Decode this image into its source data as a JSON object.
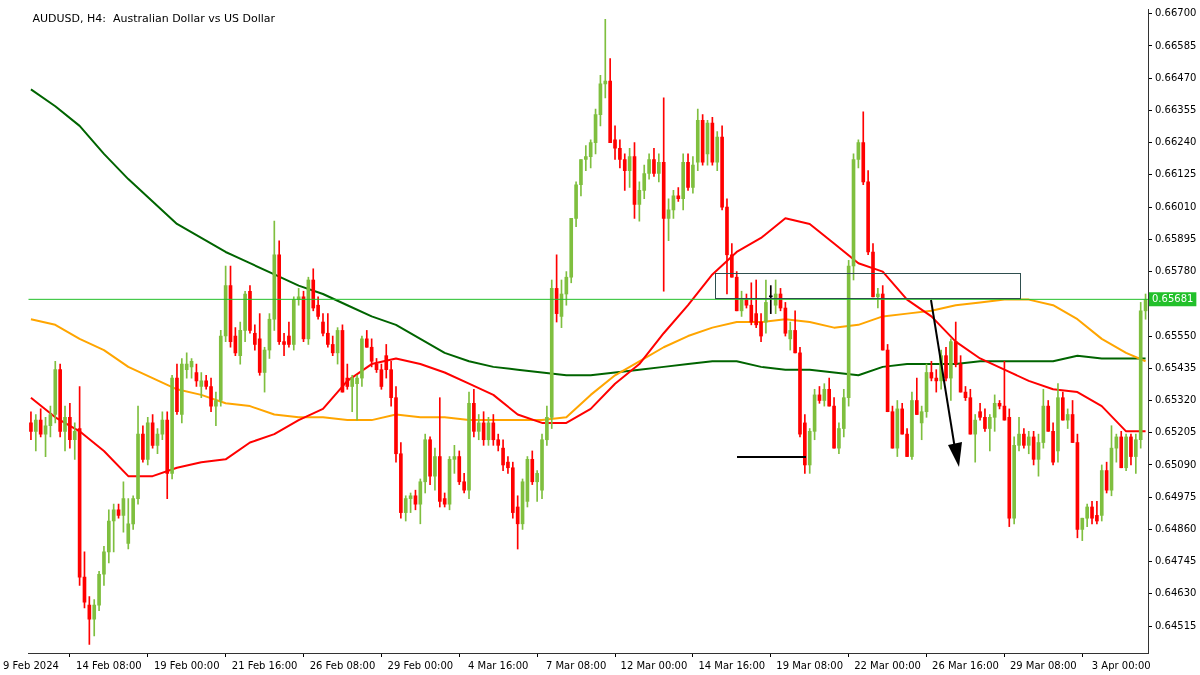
{
  "chart_data": {
    "type": "candlestick",
    "title": "AUDUSD, H4:  Australian Dollar vs US Dollar",
    "categories": [
      "9 Feb 2024",
      null,
      null,
      null,
      null,
      null,
      null,
      null,
      null,
      null,
      null,
      null,
      null,
      null,
      null,
      null,
      "14 Feb 08:00",
      null,
      null,
      null,
      null,
      null,
      null,
      null,
      null,
      null,
      null,
      null,
      null,
      null,
      null,
      null,
      "19 Feb 00:00",
      null,
      null,
      null,
      null,
      null,
      null,
      null,
      null,
      null,
      null,
      null,
      null,
      null,
      null,
      null,
      "21 Feb 16:00",
      null,
      null,
      null,
      null,
      null,
      null,
      null,
      null,
      null,
      null,
      null,
      null,
      null,
      null,
      null,
      "26 Feb 08:00",
      null,
      null,
      null,
      null,
      null,
      null,
      null,
      null,
      null,
      null,
      null,
      null,
      null,
      null,
      null,
      "29 Feb 00:00",
      null,
      null,
      null,
      null,
      null,
      null,
      null,
      null,
      null,
      null,
      null,
      null,
      null,
      null,
      null,
      "4 Mar 16:00",
      null,
      null,
      null,
      null,
      null,
      null,
      null,
      null,
      null,
      null,
      null,
      null,
      null,
      null,
      null,
      "7 Mar 08:00",
      null,
      null,
      null,
      null,
      null,
      null,
      null,
      null,
      null,
      null,
      null,
      null,
      null,
      null,
      null,
      "12 Mar 00:00",
      null,
      null,
      null,
      null,
      null,
      null,
      null,
      null,
      null,
      null,
      null,
      null,
      null,
      null,
      null,
      "14 Mar 16:00",
      null,
      null,
      null,
      null,
      null,
      null,
      null,
      null,
      null,
      null,
      null,
      null,
      null,
      null,
      null,
      "19 Mar 08:00",
      null,
      null,
      null,
      null,
      null,
      null,
      null,
      null,
      null,
      null,
      null,
      null,
      null,
      null,
      null,
      "22 Mar 00:00",
      null,
      null,
      null,
      null,
      null,
      null,
      null,
      null,
      null,
      null,
      null,
      null,
      null,
      null,
      null,
      "26 Mar 16:00",
      null,
      null,
      null,
      null,
      null,
      null,
      null,
      null,
      null,
      null,
      null,
      null,
      null,
      null,
      null,
      "29 Mar 08:00",
      null,
      null,
      null,
      null,
      null,
      null,
      null,
      null,
      null,
      null,
      null,
      null,
      null,
      null,
      null,
      "3 Apr 00:00",
      null,
      null,
      null,
      null,
      null
    ],
    "ohlc": [
      [
        0.6524,
        0.6528,
        0.6518,
        0.6521
      ],
      [
        0.6521,
        0.6527,
        0.6514,
        0.6525
      ],
      [
        0.6525,
        0.6529,
        0.6519,
        0.652
      ],
      [
        0.652,
        0.6526,
        0.6512,
        0.6523
      ],
      [
        0.6523,
        0.653,
        0.6519,
        0.6527
      ],
      [
        0.6527,
        0.6546,
        0.6524,
        0.6543
      ],
      [
        0.6543,
        0.6545,
        0.6519,
        0.6521
      ],
      [
        0.6521,
        0.653,
        0.6514,
        0.6526
      ],
      [
        0.6526,
        0.6531,
        0.6515,
        0.6518
      ],
      [
        0.6518,
        0.6524,
        0.6511,
        0.6521
      ],
      [
        0.6522,
        0.6537,
        0.6466,
        0.6469
      ],
      [
        0.6469,
        0.6478,
        0.6458,
        0.646
      ],
      [
        0.6459,
        0.6462,
        0.6445,
        0.6454
      ],
      [
        0.6454,
        0.6461,
        0.6448,
        0.6459
      ],
      [
        0.6459,
        0.6471,
        0.6457,
        0.647
      ],
      [
        0.647,
        0.648,
        0.6466,
        0.6478
      ],
      [
        0.6478,
        0.6493,
        0.6474,
        0.6489
      ],
      [
        0.6489,
        0.6495,
        0.6478,
        0.6493
      ],
      [
        0.6493,
        0.6495,
        0.649,
        0.6491
      ],
      [
        0.6491,
        0.6503,
        0.6485,
        0.6497
      ],
      [
        0.6481,
        0.6497,
        0.6479,
        0.6488
      ],
      [
        0.6488,
        0.6498,
        0.6486,
        0.6497
      ],
      [
        0.6497,
        0.653,
        0.6495,
        0.652
      ],
      [
        0.652,
        0.6523,
        0.651,
        0.6511
      ],
      [
        0.6511,
        0.6526,
        0.6509,
        0.6524
      ],
      [
        0.6524,
        0.6527,
        0.6515,
        0.6516
      ],
      [
        0.6516,
        0.6522,
        0.6513,
        0.652
      ],
      [
        0.652,
        0.6528,
        0.6518,
        0.6525
      ],
      [
        0.6525,
        0.6528,
        0.6497,
        0.6506
      ],
      [
        0.6506,
        0.6541,
        0.6504,
        0.654
      ],
      [
        0.654,
        0.6545,
        0.6527,
        0.6528
      ],
      [
        0.6527,
        0.6547,
        0.6524,
        0.6545
      ],
      [
        0.6543,
        0.6549,
        0.654,
        0.6545
      ],
      [
        0.6544,
        0.6547,
        0.654,
        0.6546
      ],
      [
        0.6542,
        0.6545,
        0.6537,
        0.6539
      ],
      [
        0.6537,
        0.6542,
        0.6533,
        0.6539
      ],
      [
        0.6539,
        0.6541,
        0.6536,
        0.6537
      ],
      [
        0.6537,
        0.654,
        0.6528,
        0.653
      ],
      [
        0.653,
        0.6535,
        0.6523,
        0.6532
      ],
      [
        0.6532,
        0.6557,
        0.653,
        0.6555
      ],
      [
        0.6555,
        0.658,
        0.6553,
        0.6573
      ],
      [
        0.6573,
        0.658,
        0.6551,
        0.6553
      ],
      [
        0.6555,
        0.6558,
        0.6548,
        0.6549
      ],
      [
        0.6548,
        0.656,
        0.6545,
        0.6557
      ],
      [
        0.6557,
        0.6571,
        0.6553,
        0.657
      ],
      [
        0.6571,
        0.6573,
        0.6556,
        0.6557
      ],
      [
        0.6556,
        0.6559,
        0.655,
        0.6552
      ],
      [
        0.6554,
        0.6563,
        0.6541,
        0.6542
      ],
      [
        0.6542,
        0.6551,
        0.6535,
        0.655
      ],
      [
        0.655,
        0.6563,
        0.6547,
        0.6561
      ],
      [
        0.6561,
        0.6596,
        0.6557,
        0.6584
      ],
      [
        0.6584,
        0.6589,
        0.6552,
        0.6553
      ],
      [
        0.6553,
        0.6556,
        0.6548,
        0.6552
      ],
      [
        0.6555,
        0.656,
        0.6551,
        0.6552
      ],
      [
        0.6552,
        0.6569,
        0.655,
        0.6568
      ],
      [
        0.6568,
        0.6572,
        0.6566,
        0.6569
      ],
      [
        0.6569,
        0.6571,
        0.6553,
        0.6554
      ],
      [
        0.6554,
        0.6576,
        0.6552,
        0.6575
      ],
      [
        0.6575,
        0.6579,
        0.6564,
        0.6565
      ],
      [
        0.6566,
        0.6569,
        0.6561,
        0.6562
      ],
      [
        0.656,
        0.6563,
        0.6555,
        0.6556
      ],
      [
        0.6556,
        0.6563,
        0.6551,
        0.6552
      ],
      [
        0.6552,
        0.6555,
        0.6548,
        0.6549
      ],
      [
        0.6549,
        0.6558,
        0.6545,
        0.6557
      ],
      [
        0.6557,
        0.6559,
        0.6535,
        0.6535
      ],
      [
        0.654,
        0.6545,
        0.6536,
        0.6537
      ],
      [
        0.6537,
        0.6541,
        0.6528,
        0.654
      ],
      [
        0.6538,
        0.6541,
        0.6525,
        0.654
      ],
      [
        0.654,
        0.6555,
        0.6537,
        0.6554
      ],
      [
        0.6554,
        0.6557,
        0.6551,
        0.6551
      ],
      [
        0.6551,
        0.6554,
        0.6544,
        0.6546
      ],
      [
        0.6545,
        0.6547,
        0.6542,
        0.6543
      ],
      [
        0.6543,
        0.6545,
        0.6536,
        0.6537
      ],
      [
        0.6548,
        0.6552,
        0.654,
        0.6543
      ],
      [
        0.6543,
        0.6546,
        0.653,
        0.6533
      ],
      [
        0.6533,
        0.6537,
        0.651,
        0.6513
      ],
      [
        0.6513,
        0.6517,
        0.649,
        0.6492
      ],
      [
        0.6492,
        0.6498,
        0.6489,
        0.6497
      ],
      [
        0.6497,
        0.6499,
        0.6492,
        0.6498
      ],
      [
        0.6498,
        0.65,
        0.6493,
        0.6495
      ],
      [
        0.6495,
        0.6504,
        0.6488,
        0.6503
      ],
      [
        0.6503,
        0.652,
        0.6499,
        0.6518
      ],
      [
        0.6518,
        0.6519,
        0.6502,
        0.6505
      ],
      [
        0.6505,
        0.6515,
        0.65,
        0.6512
      ],
      [
        0.6512,
        0.6533,
        0.6494,
        0.6496
      ],
      [
        0.6497,
        0.6499,
        0.6494,
        0.6495
      ],
      [
        0.6495,
        0.6512,
        0.6493,
        0.6511
      ],
      [
        0.6511,
        0.6516,
        0.6506,
        0.6512
      ],
      [
        0.6512,
        0.6514,
        0.6502,
        0.6503
      ],
      [
        0.6503,
        0.6506,
        0.6499,
        0.65
      ],
      [
        0.65,
        0.6535,
        0.6497,
        0.6531
      ],
      [
        0.6531,
        0.6536,
        0.6519,
        0.6521
      ],
      [
        0.6521,
        0.6527,
        0.6518,
        0.6524
      ],
      [
        0.6524,
        0.6528,
        0.6516,
        0.6518
      ],
      [
        0.6518,
        0.6526,
        0.6516,
        0.6524
      ],
      [
        0.6524,
        0.6527,
        0.6516,
        0.6518
      ],
      [
        0.6518,
        0.652,
        0.6514,
        0.6516
      ],
      [
        0.6515,
        0.6518,
        0.6507,
        0.6509
      ],
      [
        0.651,
        0.6512,
        0.6506,
        0.6508
      ],
      [
        0.6508,
        0.651,
        0.649,
        0.6492
      ],
      [
        0.6494,
        0.6498,
        0.6479,
        0.6488
      ],
      [
        0.6488,
        0.6504,
        0.6486,
        0.6503
      ],
      [
        0.6496,
        0.6512,
        0.6494,
        0.6511
      ],
      [
        0.6511,
        0.6514,
        0.6502,
        0.6503
      ],
      [
        0.6503,
        0.6507,
        0.6496,
        0.6506
      ],
      [
        0.65,
        0.652,
        0.6497,
        0.6518
      ],
      [
        0.6518,
        0.653,
        0.6516,
        0.6526
      ],
      [
        0.6526,
        0.6575,
        0.6522,
        0.6572
      ],
      [
        0.6572,
        0.6584,
        0.656,
        0.6563
      ],
      [
        0.6562,
        0.6575,
        0.6558,
        0.657
      ],
      [
        0.657,
        0.6578,
        0.6566,
        0.6576
      ],
      [
        0.6576,
        0.6597,
        0.6574,
        0.6597
      ],
      [
        0.6597,
        0.661,
        0.6594,
        0.6609
      ],
      [
        0.6609,
        0.6618,
        0.6605,
        0.6618
      ],
      [
        0.6618,
        0.6623,
        0.6614,
        0.6619
      ],
      [
        0.6619,
        0.6625,
        0.6615,
        0.6624
      ],
      [
        0.6624,
        0.6636,
        0.662,
        0.6634
      ],
      [
        0.6634,
        0.6648,
        0.663,
        0.6645
      ],
      [
        0.6645,
        0.6668,
        0.664,
        0.6646
      ],
      [
        0.6646,
        0.6654,
        0.6624,
        0.6624
      ],
      [
        0.6625,
        0.663,
        0.6618,
        0.6622
      ],
      [
        0.6622,
        0.6625,
        0.6615,
        0.6618
      ],
      [
        0.6618,
        0.662,
        0.6607,
        0.6614
      ],
      [
        0.6614,
        0.6622,
        0.6608,
        0.6619
      ],
      [
        0.6619,
        0.6624,
        0.6597,
        0.6602
      ],
      [
        0.6602,
        0.661,
        0.6596,
        0.6607
      ],
      [
        0.6607,
        0.6616,
        0.6604,
        0.6613
      ],
      [
        0.6613,
        0.662,
        0.6611,
        0.6618
      ],
      [
        0.6618,
        0.6622,
        0.6612,
        0.6613
      ],
      [
        0.6613,
        0.662,
        0.661,
        0.6617
      ],
      [
        0.6617,
        0.664,
        0.6571,
        0.6597
      ],
      [
        0.6597,
        0.6604,
        0.6589,
        0.66
      ],
      [
        0.66,
        0.6607,
        0.6597,
        0.6605
      ],
      [
        0.6605,
        0.6608,
        0.6603,
        0.6604
      ],
      [
        0.6604,
        0.662,
        0.66,
        0.6617
      ],
      [
        0.6617,
        0.662,
        0.6607,
        0.6608
      ],
      [
        0.6608,
        0.6619,
        0.6606,
        0.6616
      ],
      [
        0.6617,
        0.6636,
        0.6614,
        0.6632
      ],
      [
        0.6632,
        0.6634,
        0.6616,
        0.6617
      ],
      [
        0.662,
        0.6632,
        0.6616,
        0.6631
      ],
      [
        0.6631,
        0.6633,
        0.6616,
        0.6617
      ],
      [
        0.6617,
        0.6628,
        0.6614,
        0.6626
      ],
      [
        0.6626,
        0.663,
        0.66,
        0.6601
      ],
      [
        0.6601,
        0.6604,
        0.657,
        0.6584
      ],
      [
        0.6584,
        0.6588,
        0.6576,
        0.6576
      ],
      [
        0.6576,
        0.6578,
        0.6564,
        0.6564
      ],
      [
        0.6564,
        0.6571,
        0.6562,
        0.6568
      ],
      [
        0.6568,
        0.657,
        0.6565,
        0.6566
      ],
      [
        0.6566,
        0.6574,
        0.6559,
        0.656
      ],
      [
        0.6563,
        0.6575,
        0.6558,
        0.6559
      ],
      [
        0.656,
        0.6563,
        0.6553,
        0.6555
      ],
      [
        0.656,
        0.6575,
        0.6556,
        0.6567
      ],
      [
        0.6569,
        0.6573,
        0.6563,
        0.6569
      ],
      [
        0.6566,
        0.6575,
        0.6563,
        0.657
      ],
      [
        0.657,
        0.6572,
        0.6564,
        0.6565
      ],
      [
        0.6565,
        0.6567,
        0.6555,
        0.6556
      ],
      [
        0.6554,
        0.656,
        0.655,
        0.6557
      ],
      [
        0.6557,
        0.6564,
        0.6549,
        0.6549
      ],
      [
        0.6549,
        0.6551,
        0.6519,
        0.652
      ],
      [
        0.6524,
        0.6527,
        0.6506,
        0.6509
      ],
      [
        0.6509,
        0.6522,
        0.6506,
        0.6521
      ],
      [
        0.6521,
        0.6536,
        0.6518,
        0.6534
      ],
      [
        0.6534,
        0.6537,
        0.6531,
        0.6532
      ],
      [
        0.6532,
        0.6538,
        0.653,
        0.6536
      ],
      [
        0.6536,
        0.654,
        0.653,
        0.653
      ],
      [
        0.653,
        0.6533,
        0.6515,
        0.6515
      ],
      [
        0.6515,
        0.6524,
        0.6513,
        0.6522
      ],
      [
        0.6522,
        0.6536,
        0.6519,
        0.6533
      ],
      [
        0.6533,
        0.6582,
        0.653,
        0.658
      ],
      [
        0.658,
        0.662,
        0.6575,
        0.6618
      ],
      [
        0.6618,
        0.6625,
        0.6615,
        0.6624
      ],
      [
        0.6624,
        0.6635,
        0.6609,
        0.661
      ],
      [
        0.661,
        0.6614,
        0.6584,
        0.6585
      ],
      [
        0.6585,
        0.6588,
        0.6569,
        0.6569
      ],
      [
        0.6569,
        0.6572,
        0.6565,
        0.657
      ],
      [
        0.657,
        0.6573,
        0.655,
        0.655
      ],
      [
        0.655,
        0.6552,
        0.6528,
        0.6528
      ],
      [
        0.6528,
        0.653,
        0.6515,
        0.6515
      ],
      [
        0.6515,
        0.6532,
        0.6512,
        0.6529
      ],
      [
        0.6529,
        0.6531,
        0.652,
        0.652
      ],
      [
        0.652,
        0.6522,
        0.6512,
        0.6512
      ],
      [
        0.6512,
        0.6535,
        0.6511,
        0.6532
      ],
      [
        0.6532,
        0.654,
        0.6527,
        0.6527
      ],
      [
        0.6524,
        0.653,
        0.6518,
        0.6528
      ],
      [
        0.6528,
        0.6545,
        0.6526,
        0.6542
      ],
      [
        0.6542,
        0.6546,
        0.6539,
        0.654
      ],
      [
        0.654,
        0.6543,
        0.6535,
        0.6539
      ],
      [
        0.6539,
        0.655,
        0.6536,
        0.6548
      ],
      [
        0.6548,
        0.6551,
        0.6539,
        0.654
      ],
      [
        0.654,
        0.6554,
        0.6532,
        0.6553
      ],
      [
        0.6553,
        0.656,
        0.6544,
        0.6545
      ],
      [
        0.6545,
        0.6548,
        0.6535,
        0.6535
      ],
      [
        0.6535,
        0.6537,
        0.6532,
        0.6533
      ],
      [
        0.6533,
        0.6536,
        0.652,
        0.652
      ],
      [
        0.652,
        0.6527,
        0.651,
        0.6525
      ],
      [
        0.6528,
        0.6531,
        0.6525,
        0.6526
      ],
      [
        0.6526,
        0.6529,
        0.6521,
        0.6522
      ],
      [
        0.6522,
        0.6527,
        0.6514,
        0.6526
      ],
      [
        0.6526,
        0.6534,
        0.6521,
        0.6531
      ],
      [
        0.6531,
        0.6532,
        0.6529,
        0.653
      ],
      [
        0.653,
        0.6546,
        0.6525,
        0.6525
      ],
      [
        0.6526,
        0.6529,
        0.6487,
        0.649
      ],
      [
        0.649,
        0.6519,
        0.6488,
        0.6516
      ],
      [
        0.6516,
        0.6526,
        0.6514,
        0.652
      ],
      [
        0.652,
        0.6522,
        0.6515,
        0.6516
      ],
      [
        0.6516,
        0.6521,
        0.6513,
        0.6519
      ],
      [
        0.6519,
        0.6521,
        0.6509,
        0.6511
      ],
      [
        0.6511,
        0.652,
        0.6505,
        0.6517
      ],
      [
        0.6517,
        0.6536,
        0.6515,
        0.653
      ],
      [
        0.653,
        0.6532,
        0.6521,
        0.6521
      ],
      [
        0.6521,
        0.6524,
        0.6509,
        0.651
      ],
      [
        0.6514,
        0.6538,
        0.651,
        0.6533
      ],
      [
        0.6533,
        0.6535,
        0.6525,
        0.6525
      ],
      [
        0.6525,
        0.6529,
        0.6522,
        0.6527
      ],
      [
        0.6527,
        0.6532,
        0.6517,
        0.6517
      ],
      [
        0.6517,
        0.652,
        0.6483,
        0.6486
      ],
      [
        0.6486,
        0.649,
        0.6482,
        0.649
      ],
      [
        0.649,
        0.6495,
        0.6487,
        0.6494
      ],
      [
        0.6494,
        0.6496,
        0.6488,
        0.649
      ],
      [
        0.6491,
        0.6496,
        0.6488,
        0.6489
      ],
      [
        0.6491,
        0.6509,
        0.6489,
        0.6507
      ],
      [
        0.6507,
        0.651,
        0.6499,
        0.65
      ],
      [
        0.65,
        0.6523,
        0.6498,
        0.6515
      ],
      [
        0.6515,
        0.652,
        0.651,
        0.6519
      ],
      [
        0.6519,
        0.6521,
        0.6508,
        0.6508
      ],
      [
        0.6508,
        0.652,
        0.6507,
        0.6519
      ],
      [
        0.6519,
        0.652,
        0.6509,
        0.6512
      ],
      [
        0.6512,
        0.652,
        0.6506,
        0.6518
      ],
      [
        0.6518,
        0.6567,
        0.6515,
        0.6564
      ],
      [
        0.6564,
        0.657,
        0.6561,
        0.6568
      ]
    ],
    "series": [
      {
        "type": "line",
        "color": "#ff0000",
        "values": [
          0.6533,
          null,
          null,
          null,
          null,
          0.6526,
          null,
          null,
          null,
          null,
          0.6521,
          null,
          null,
          null,
          null,
          0.6514,
          null,
          null,
          null,
          null,
          0.6505,
          null,
          null,
          null,
          null,
          0.6505,
          null,
          null,
          null,
          null,
          0.6508,
          null,
          null,
          null,
          null,
          0.651,
          null,
          null,
          null,
          null,
          0.6511,
          null,
          null,
          null,
          null,
          0.6517,
          null,
          null,
          null,
          null,
          0.652,
          null,
          null,
          null,
          null,
          0.6525,
          null,
          null,
          null,
          null,
          0.6529,
          null,
          null,
          null,
          null,
          0.6539,
          null,
          null,
          null,
          null,
          0.6545,
          null,
          null,
          null,
          null,
          0.6547,
          null,
          null,
          null,
          null,
          0.6545,
          null,
          null,
          null,
          null,
          0.6542,
          null,
          null,
          null,
          null,
          0.6538,
          null,
          null,
          null,
          null,
          0.6534,
          null,
          null,
          null,
          null,
          0.6527,
          null,
          null,
          null,
          null,
          0.6524,
          null,
          null,
          null,
          null,
          0.6524,
          null,
          null,
          null,
          null,
          0.6529,
          null,
          null,
          null,
          null,
          0.6538,
          null,
          null,
          null,
          null,
          0.6545,
          null,
          null,
          null,
          null,
          0.6556,
          null,
          null,
          null,
          null,
          0.6566,
          null,
          null,
          null,
          null,
          0.6577,
          null,
          null,
          null,
          null,
          0.6585,
          null,
          null,
          null,
          null,
          0.659,
          null,
          null,
          null,
          null,
          0.6597,
          null,
          null,
          null,
          null,
          0.6595,
          null,
          null,
          null,
          null,
          0.6588,
          null,
          null,
          null,
          null,
          0.6581,
          null,
          null,
          null,
          null,
          0.6578,
          null,
          null,
          null,
          null,
          0.6568,
          null,
          null,
          null,
          null,
          0.6562,
          null,
          null,
          null,
          null,
          0.6553,
          null,
          null,
          null,
          null,
          0.6547,
          null,
          null,
          null,
          null,
          0.6543,
          null,
          null,
          null,
          null,
          0.6539,
          null,
          null,
          null,
          null,
          0.6536,
          null,
          null,
          null,
          null,
          0.6535,
          null,
          null,
          null,
          null,
          0.653,
          null,
          null,
          null,
          null,
          0.6521,
          null,
          null,
          null,
          0.6521
        ]
      },
      {
        "type": "line",
        "color": "#ffa500",
        "values": [
          0.6561,
          null,
          null,
          null,
          null,
          0.6559,
          null,
          null,
          null,
          null,
          0.6554,
          null,
          null,
          null,
          null,
          0.655,
          null,
          null,
          null,
          null,
          0.6544,
          null,
          null,
          null,
          null,
          0.654,
          null,
          null,
          null,
          null,
          0.6536,
          null,
          null,
          null,
          null,
          0.6534,
          null,
          null,
          null,
          null,
          0.6531,
          null,
          null,
          null,
          null,
          0.653,
          null,
          null,
          null,
          null,
          0.6527,
          null,
          null,
          null,
          null,
          0.6526,
          null,
          null,
          null,
          null,
          0.6526,
          null,
          null,
          null,
          null,
          0.6525,
          null,
          null,
          null,
          null,
          0.6525,
          null,
          null,
          null,
          null,
          0.6527,
          null,
          null,
          null,
          null,
          0.6526,
          null,
          null,
          null,
          null,
          0.6526,
          null,
          null,
          null,
          null,
          0.6525,
          null,
          null,
          null,
          null,
          0.6525,
          null,
          null,
          null,
          null,
          0.6525,
          null,
          null,
          null,
          null,
          0.6525,
          null,
          null,
          null,
          null,
          0.6526,
          null,
          null,
          null,
          null,
          0.6534,
          null,
          null,
          null,
          null,
          0.6541,
          null,
          null,
          null,
          null,
          0.6546,
          null,
          null,
          null,
          null,
          0.6551,
          null,
          null,
          null,
          null,
          0.6555,
          null,
          null,
          null,
          null,
          0.6558,
          null,
          null,
          null,
          null,
          0.656,
          null,
          null,
          null,
          null,
          0.656,
          null,
          null,
          null,
          null,
          0.6561,
          null,
          null,
          null,
          null,
          0.656,
          null,
          null,
          null,
          null,
          0.6558,
          null,
          null,
          null,
          null,
          0.6559,
          null,
          null,
          null,
          null,
          0.6562,
          null,
          null,
          null,
          null,
          0.6563,
          null,
          null,
          null,
          null,
          0.6564,
          null,
          null,
          null,
          null,
          0.6566,
          null,
          null,
          null,
          null,
          0.6567,
          null,
          null,
          null,
          null,
          0.6568,
          null,
          null,
          null,
          null,
          0.6568,
          null,
          null,
          null,
          null,
          0.6566,
          null,
          null,
          null,
          null,
          0.6561,
          null,
          null,
          null,
          null,
          0.6554,
          null,
          null,
          null,
          null,
          0.6549,
          null,
          null,
          null,
          0.6546
        ]
      },
      {
        "type": "line",
        "color": "#006400",
        "values": [
          0.6643,
          null,
          null,
          null,
          null,
          0.6637,
          null,
          null,
          null,
          null,
          0.663,
          null,
          null,
          null,
          null,
          0.662,
          null,
          null,
          null,
          null,
          0.6611,
          null,
          null,
          null,
          null,
          0.6603,
          null,
          null,
          null,
          null,
          0.6595,
          null,
          null,
          null,
          null,
          0.659,
          null,
          null,
          null,
          null,
          0.6585,
          null,
          null,
          null,
          null,
          0.6581,
          null,
          null,
          null,
          null,
          0.6577,
          null,
          null,
          null,
          null,
          0.6573,
          null,
          null,
          null,
          null,
          0.657,
          null,
          null,
          null,
          null,
          0.6566,
          null,
          null,
          null,
          null,
          0.6562,
          null,
          null,
          null,
          null,
          0.6559,
          null,
          null,
          null,
          null,
          0.6554,
          null,
          null,
          null,
          null,
          0.6549,
          null,
          null,
          null,
          null,
          0.6546,
          null,
          null,
          null,
          null,
          0.6544,
          null,
          null,
          null,
          null,
          0.6543,
          null,
          null,
          null,
          null,
          0.6542,
          null,
          null,
          null,
          null,
          0.6541,
          null,
          null,
          null,
          null,
          0.6541,
          null,
          null,
          null,
          null,
          0.6542,
          null,
          null,
          null,
          null,
          0.6543,
          null,
          null,
          null,
          null,
          0.6544,
          null,
          null,
          null,
          null,
          0.6545,
          null,
          null,
          null,
          null,
          0.6546,
          null,
          null,
          null,
          null,
          0.6546,
          null,
          null,
          null,
          null,
          0.6544,
          null,
          null,
          null,
          null,
          0.6543,
          null,
          null,
          null,
          null,
          0.6543,
          null,
          null,
          null,
          null,
          0.6542,
          null,
          null,
          null,
          null,
          0.6541,
          null,
          null,
          null,
          null,
          0.6544,
          null,
          null,
          null,
          null,
          0.6545,
          null,
          null,
          null,
          null,
          0.6545,
          null,
          null,
          null,
          null,
          0.6545,
          null,
          null,
          null,
          null,
          0.6546,
          null,
          null,
          null,
          null,
          0.6546,
          null,
          null,
          null,
          null,
          0.6546,
          null,
          null,
          null,
          null,
          0.6546,
          null,
          null,
          null,
          null,
          0.6548,
          null,
          null,
          null,
          null,
          0.6547,
          null,
          null,
          null,
          null,
          0.6547,
          null,
          null,
          null,
          0.6547
        ]
      }
    ],
    "ylim": [
      0.64419,
      0.66717
    ],
    "yticks": [
      {
        "value": 0.667,
        "label": "0.66700"
      },
      {
        "value": 0.66585,
        "label": "0.66585"
      },
      {
        "value": 0.6647,
        "label": "0.66470"
      },
      {
        "value": 0.66355,
        "label": "0.66355"
      },
      {
        "value": 0.6624,
        "label": "0.66240"
      },
      {
        "value": 0.66125,
        "label": "0.66125"
      },
      {
        "value": 0.6601,
        "label": "0.66010"
      },
      {
        "value": 0.65895,
        "label": "0.65895"
      },
      {
        "value": 0.6578,
        "label": "0.65780"
      },
      {
        "value": 0.65665,
        "label": null
      },
      {
        "value": 0.6555,
        "label": "0.65550"
      },
      {
        "value": 0.65435,
        "label": "0.65435"
      },
      {
        "value": 0.6532,
        "label": "0.65320"
      },
      {
        "value": 0.65205,
        "label": "0.65205"
      },
      {
        "value": 0.6509,
        "label": "0.65090"
      },
      {
        "value": 0.64975,
        "label": "0.64975"
      },
      {
        "value": 0.6486,
        "label": "0.64860"
      },
      {
        "value": 0.64745,
        "label": "0.64745"
      },
      {
        "value": 0.6463,
        "label": "0.64630"
      },
      {
        "value": 0.64515,
        "label": "0.64515"
      }
    ],
    "ref_lines": [
      {
        "axis": "y",
        "value": 0.65681,
        "label": "0.65681",
        "color": "#22c02a"
      }
    ]
  }
}
